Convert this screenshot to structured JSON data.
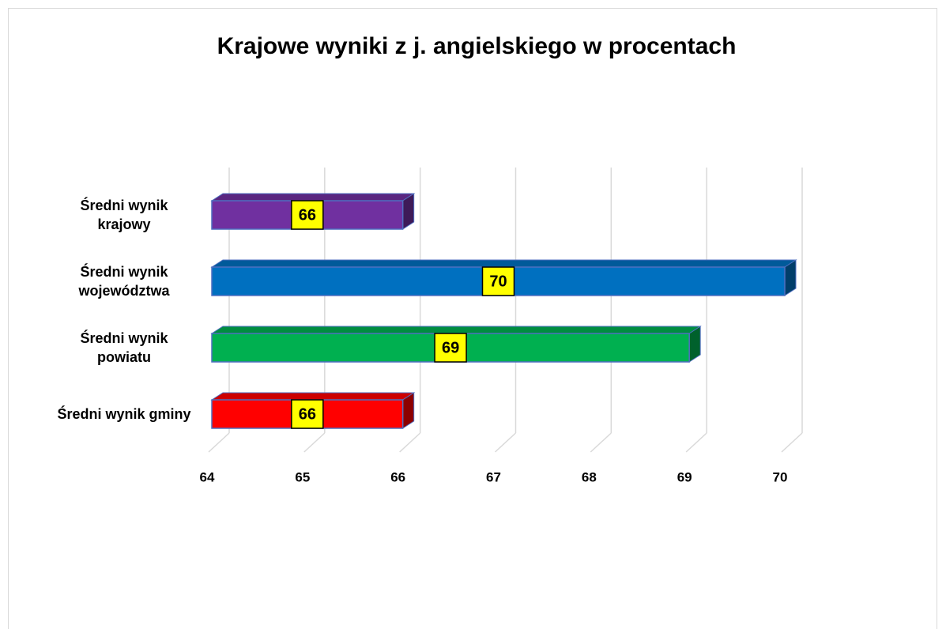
{
  "chart_data": {
    "type": "bar",
    "orientation": "horizontal",
    "title": "Krajowe wyniki z j. angielskiego w procentach",
    "categories": [
      "Średni wynik krajowy",
      "Średni wynik województwa",
      "Średni wynik powiatu",
      "Średni wynik gminy"
    ],
    "values": [
      66,
      70,
      69,
      66
    ],
    "colors": [
      "#7030a0",
      "#0070c0",
      "#00b050",
      "#ff0000"
    ],
    "xlim": [
      64,
      70
    ],
    "xticks": [
      64,
      65,
      66,
      67,
      68,
      69,
      70
    ],
    "grid": true
  }
}
